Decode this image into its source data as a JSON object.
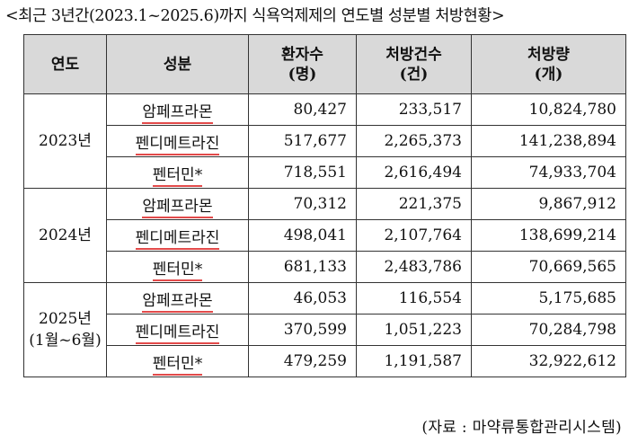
{
  "title": "<최근 3년간(2023.1~2025.6)까지 식욕억제제의 연도별 성분별 처방현황>",
  "headers": {
    "year": "연도",
    "component": "성분",
    "patients": [
      "환자수",
      "(명)"
    ],
    "prescriptions": [
      "처방건수",
      "(건)"
    ],
    "volume": [
      "처방량",
      "(개)"
    ]
  },
  "years": [
    {
      "label": [
        "2023년"
      ],
      "rows": [
        {
          "component": "암페프라몬",
          "patients": "80,427",
          "prescriptions": "233,517",
          "volume": "10,824,780"
        },
        {
          "component": "펜디메트라진",
          "patients": "517,677",
          "prescriptions": "2,265,373",
          "volume": "141,238,894"
        },
        {
          "component": "펜터민*",
          "patients": "718,551",
          "prescriptions": "2,616,494",
          "volume": "74,933,704"
        }
      ]
    },
    {
      "label": [
        "2024년"
      ],
      "rows": [
        {
          "component": "암페프라몬",
          "patients": "70,312",
          "prescriptions": "221,375",
          "volume": "9,867,912"
        },
        {
          "component": "펜디메트라진",
          "patients": "498,041",
          "prescriptions": "2,107,764",
          "volume": "138,699,214"
        },
        {
          "component": "펜터민*",
          "patients": "681,133",
          "prescriptions": "2,483,786",
          "volume": "70,669,565"
        }
      ]
    },
    {
      "label": [
        "2025년",
        "(1월~6월)"
      ],
      "rows": [
        {
          "component": "암페프라몬",
          "patients": "46,053",
          "prescriptions": "116,554",
          "volume": "5,175,685"
        },
        {
          "component": "펜디메트라진",
          "patients": "370,599",
          "prescriptions": "1,051,223",
          "volume": "70,284,798"
        },
        {
          "component": "펜터민*",
          "patients": "479,259",
          "prescriptions": "1,191,587",
          "volume": "32,922,612"
        }
      ]
    }
  ],
  "source": "(자료 : 마약류통합관리시스템)",
  "colors": {
    "header_bg": "#d9d9d9",
    "underline": "#e24a4a"
  }
}
